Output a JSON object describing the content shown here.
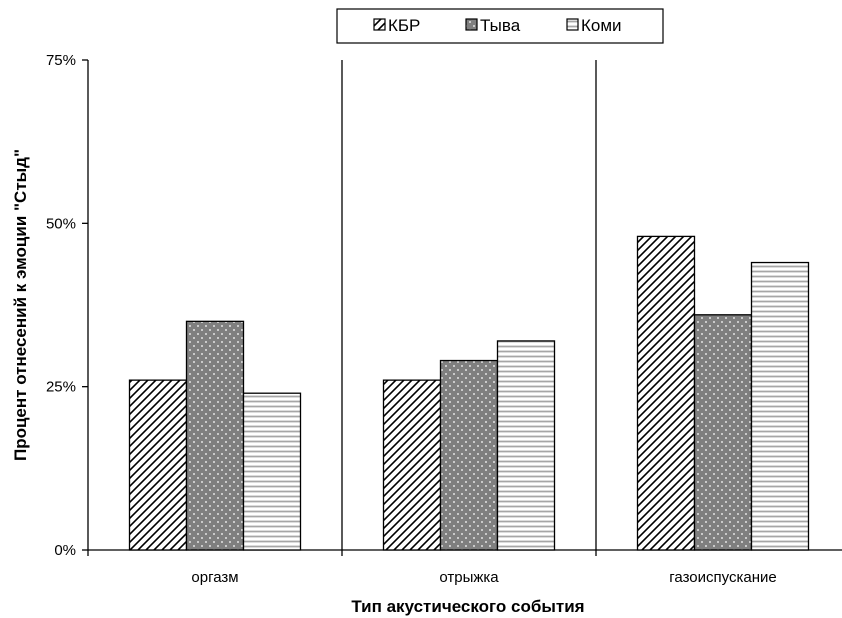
{
  "chart_data": {
    "type": "bar",
    "categories": [
      "оргазм",
      "отрыжка",
      "газоиспускание"
    ],
    "series": [
      {
        "name": "КБР",
        "values": [
          26,
          26,
          48
        ],
        "pattern": "diagonal-hatch"
      },
      {
        "name": "Тыва",
        "values": [
          35,
          29,
          36
        ],
        "pattern": "dotted-gray"
      },
      {
        "name": "Коми",
        "values": [
          24,
          32,
          44
        ],
        "pattern": "horizontal-lines"
      }
    ],
    "title": "",
    "xlabel": "Тип акустического события",
    "ylabel": "Процент отнесений к эмоции \"Стыд\"",
    "ylim": [
      0,
      75
    ],
    "yticks": [
      0,
      25,
      50,
      75
    ],
    "ytick_labels": [
      "0%",
      "25%",
      "50%",
      "75%"
    ],
    "grid": false,
    "category_separators": true,
    "legend_position": "top-center"
  }
}
